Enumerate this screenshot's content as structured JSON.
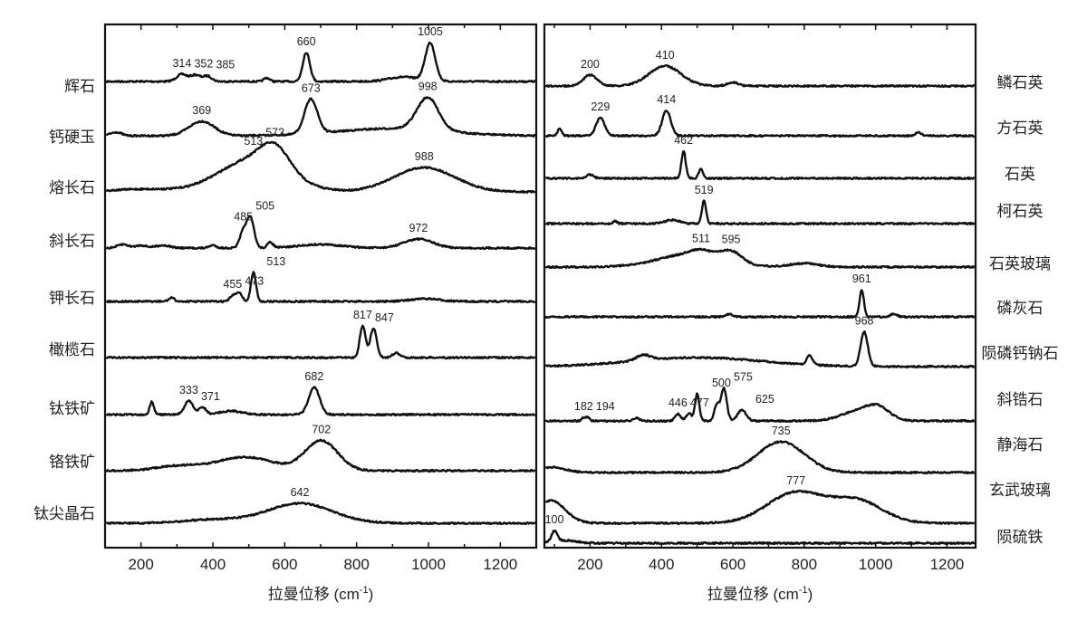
{
  "chart_data": [
    {
      "type": "line",
      "panel": "left",
      "xlabel": "拉曼位移 (cm-1)",
      "xlabel_main": "拉曼位移 (cm",
      "xlabel_sup": "-1",
      "xlabel_close": ")",
      "ylabel": "",
      "xlim": [
        100,
        1300
      ],
      "xticks": [
        "200",
        "400",
        "600",
        "800",
        "1000",
        "1200"
      ],
      "intensity_unit": "a.u. (stacked, offset)",
      "series": [
        {
          "name": "辉石",
          "offset": 51.5,
          "peaks": [
            [
              314,
              0.8,
              15
            ],
            [
              352,
              0.7,
              13
            ],
            [
              385,
              0.6,
              12
            ],
            [
              550,
              0.4,
              8
            ],
            [
              660,
              3.2,
              10
            ],
            [
              930,
              0.5,
              40
            ],
            [
              1005,
              4.2,
              14
            ]
          ],
          "labels": [
            "314",
            "352",
            "385",
            "660",
            "1005"
          ],
          "label_at": [
            314,
            352,
            385,
            660,
            1005
          ]
        },
        {
          "name": "钙硬玉",
          "offset": 45.5,
          "peaks": [
            [
              130,
              0.4,
              15
            ],
            [
              369,
              1.6,
              35
            ],
            [
              673,
              3.8,
              18
            ],
            [
              900,
              0.8,
              150
            ],
            [
              998,
              3.6,
              30
            ]
          ],
          "labels": [
            "369",
            "673",
            "998"
          ],
          "label_at": [
            369,
            673,
            998
          ]
        },
        {
          "name": "熔长石",
          "offset": 39.3,
          "peaks": [
            [
              513,
              3.6,
              95
            ],
            [
              573,
              2.4,
              40
            ],
            [
              988,
              2.7,
              85
            ],
            [
              200,
              0.3,
              80
            ]
          ],
          "labels": [
            "513",
            "573",
            "988"
          ],
          "label_at": [
            513,
            573,
            988
          ]
        },
        {
          "name": "斜长石",
          "offset": 33.1,
          "peaks": [
            [
              150,
              0.4,
              15
            ],
            [
              200,
              0.3,
              15
            ],
            [
              260,
              0.3,
              20
            ],
            [
              400,
              0.3,
              10
            ],
            [
              485,
              1.8,
              10
            ],
            [
              505,
              3.2,
              10
            ],
            [
              560,
              0.6,
              8
            ],
            [
              700,
              0.4,
              60
            ],
            [
              972,
              1.0,
              40
            ]
          ],
          "labels": [
            "485",
            "505",
            "972"
          ],
          "label_at": [
            485,
            505,
            972
          ]
        },
        {
          "name": "钾长石",
          "offset": 27.2,
          "peaks": [
            [
              285,
              0.4,
              8
            ],
            [
              455,
              0.6,
              8
            ],
            [
              473,
              1.0,
              8
            ],
            [
              513,
              3.2,
              7
            ],
            [
              990,
              0.3,
              40
            ]
          ],
          "labels": [
            "455",
            "473",
            "513"
          ],
          "label_at": [
            455,
            473,
            513
          ]
        },
        {
          "name": "橄榄石",
          "offset": 21.0,
          "peaks": [
            [
              817,
              3.5,
              8
            ],
            [
              847,
              3.2,
              9
            ],
            [
              910,
              0.5,
              10
            ]
          ],
          "labels": [
            "817",
            "847"
          ],
          "label_at": [
            817,
            847
          ]
        },
        {
          "name": "钛铁矿",
          "offset": 14.7,
          "peaks": [
            [
              230,
              1.4,
              6
            ],
            [
              333,
              1.5,
              12
            ],
            [
              371,
              0.8,
              10
            ],
            [
              450,
              0.4,
              30
            ],
            [
              682,
              3.0,
              15
            ]
          ],
          "labels": [
            "333",
            "371",
            "682"
          ],
          "label_at": [
            333,
            371,
            682
          ]
        },
        {
          "name": "铬铁矿",
          "offset": 8.5,
          "peaks": [
            [
              490,
              1.5,
              80
            ],
            [
              702,
              3.3,
              45
            ],
            [
              300,
              0.5,
              60
            ]
          ],
          "labels": [
            "702"
          ],
          "label_at": [
            702
          ]
        },
        {
          "name": "钛尖晶石",
          "offset": 2.7,
          "peaks": [
            [
              642,
              2.2,
              90
            ],
            [
              400,
              0.4,
              80
            ]
          ],
          "labels": [
            "642"
          ],
          "label_at": [
            642
          ]
        }
      ]
    },
    {
      "type": "line",
      "panel": "right",
      "xlabel": "拉曼位移 (cm-1)",
      "xlabel_main": "拉曼位移 (cm",
      "xlabel_sup": "-1",
      "xlabel_close": ")",
      "ylabel": "",
      "xlim": [
        72,
        1280
      ],
      "xticks": [
        "200",
        "400",
        "600",
        "800",
        "1000",
        "1200"
      ],
      "intensity_unit": "a.u. (stacked, offset)",
      "series": [
        {
          "name": "鳞石英",
          "offset": 51.0,
          "peaks": [
            [
              200,
              1.2,
              20
            ],
            [
              410,
              2.2,
              45
            ],
            [
              600,
              0.4,
              15
            ]
          ],
          "labels": [
            "200",
            "410"
          ],
          "label_at": [
            200,
            410
          ]
        },
        {
          "name": "方石英",
          "offset": 45.5,
          "peaks": [
            [
              115,
              0.8,
              6
            ],
            [
              229,
              2.0,
              12
            ],
            [
              414,
              2.8,
              12
            ],
            [
              1120,
              0.4,
              8
            ]
          ],
          "labels": [
            "229",
            "414"
          ],
          "label_at": [
            229,
            414
          ]
        },
        {
          "name": "石英",
          "offset": 40.8,
          "peaks": [
            [
              200,
              0.4,
              10
            ],
            [
              462,
              3.0,
              6
            ],
            [
              510,
              1.0,
              6
            ]
          ],
          "labels": [
            "462"
          ],
          "label_at": [
            462
          ]
        },
        {
          "name": "柯石英",
          "offset": 35.8,
          "peaks": [
            [
              430,
              0.4,
              20
            ],
            [
              519,
              2.5,
              6
            ],
            [
              270,
              0.3,
              5
            ]
          ],
          "labels": [
            "519"
          ],
          "label_at": [
            519
          ]
        },
        {
          "name": "石英玻璃",
          "offset": 31.0,
          "peaks": [
            [
              480,
              1.4,
              90
            ],
            [
              511,
              0.6,
              30
            ],
            [
              595,
              1.2,
              30
            ],
            [
              800,
              0.4,
              40
            ]
          ],
          "labels": [
            "511",
            "595"
          ],
          "label_at": [
            511,
            595
          ]
        },
        {
          "name": "磷灰石",
          "offset": 25.5,
          "peaks": [
            [
              961,
              3.0,
              6
            ],
            [
              590,
              0.3,
              10
            ],
            [
              1050,
              0.3,
              10
            ]
          ],
          "labels": [
            "961"
          ],
          "label_at": [
            961
          ]
        },
        {
          "name": "陨磷钙钠石",
          "offset": 20.0,
          "peaks": [
            [
              500,
              1.0,
              180
            ],
            [
              350,
              0.6,
              20
            ],
            [
              815,
              1.0,
              8
            ],
            [
              968,
              3.8,
              10
            ]
          ],
          "labels": [
            "968"
          ],
          "label_at": [
            968
          ]
        },
        {
          "name": "斜锆石",
          "offset": 14.0,
          "peaks": [
            [
              182,
              0.4,
              5
            ],
            [
              194,
              0.4,
              5
            ],
            [
              330,
              0.3,
              8
            ],
            [
              446,
              0.8,
              8
            ],
            [
              477,
              0.8,
              8
            ],
            [
              500,
              3.0,
              6
            ],
            [
              555,
              1.8,
              7
            ],
            [
              575,
              3.6,
              8
            ],
            [
              625,
              1.2,
              12
            ],
            [
              960,
              1.2,
              50
            ],
            [
              1010,
              1.0,
              30
            ]
          ],
          "labels": [
            "182",
            "194",
            "446",
            "477",
            "500",
            "575",
            "625"
          ],
          "label_at": [
            182,
            194,
            446,
            477,
            500,
            575,
            625
          ]
        },
        {
          "name": "静海石",
          "offset": 8.3,
          "peaks": [
            [
              735,
              3.4,
              65
            ],
            [
              90,
              0.6,
              40
            ]
          ],
          "labels": [
            "735"
          ],
          "label_at": [
            735
          ]
        },
        {
          "name": "玄武玻璃",
          "offset": 2.7,
          "peaks": [
            [
              777,
              3.4,
              80
            ],
            [
              950,
              2.4,
              70
            ],
            [
              90,
              2.5,
              40
            ]
          ],
          "labels": [
            "777"
          ],
          "label_at": [
            777
          ]
        },
        {
          "name": "陨硫铁",
          "offset": 0.5,
          "peaks": [
            [
              100,
              1.2,
              8
            ],
            [
              130,
              0.3,
              30
            ]
          ],
          "labels": [
            "100"
          ],
          "label_at": [
            100
          ]
        }
      ]
    }
  ]
}
